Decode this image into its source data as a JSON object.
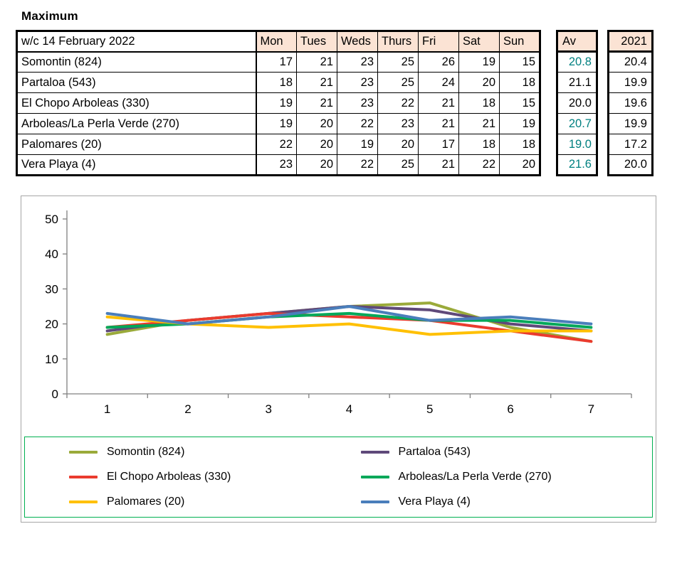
{
  "title": "Maximum",
  "table": {
    "week_label": "w/c 14 February 2022",
    "days": [
      "Mon",
      "Tues",
      "Weds",
      "Thurs",
      "Fri",
      "Sat",
      "Sun"
    ],
    "av_header": "Av",
    "prev_header": "2021",
    "rows": [
      {
        "name": "Somontin (824)",
        "values": [
          17,
          21,
          23,
          25,
          26,
          19,
          15
        ],
        "av": "20.8",
        "av_color": "#008080",
        "prev": "20.4"
      },
      {
        "name": "Partaloa (543)",
        "values": [
          18,
          21,
          23,
          25,
          24,
          20,
          18
        ],
        "av": "21.1",
        "av_color": "#000000",
        "prev": "19.9"
      },
      {
        "name": "El Chopo  Arboleas (330)",
        "values": [
          19,
          21,
          23,
          22,
          21,
          18,
          15
        ],
        "av": "20.0",
        "av_color": "#000000",
        "prev": "19.6"
      },
      {
        "name": "Arboleas/La Perla Verde (270)",
        "values": [
          19,
          20,
          22,
          23,
          21,
          21,
          19
        ],
        "av": "20.7",
        "av_color": "#008080",
        "prev": "19.9"
      },
      {
        "name": "Palomares (20)",
        "values": [
          22,
          20,
          19,
          20,
          17,
          18,
          18
        ],
        "av": "19.0",
        "av_color": "#008080",
        "prev": "17.2"
      },
      {
        "name": "Vera Playa (4)",
        "values": [
          23,
          20,
          22,
          25,
          21,
          22,
          20
        ],
        "av": "21.6",
        "av_color": "#008080",
        "prev": "20.0"
      }
    ]
  },
  "chart_data": {
    "type": "line",
    "title": "",
    "x": [
      1,
      2,
      3,
      4,
      5,
      6,
      7
    ],
    "series": [
      {
        "name": "Somontin (824)",
        "color": "#9aaa3a",
        "values": [
          17,
          21,
          23,
          25,
          26,
          19,
          15
        ]
      },
      {
        "name": "Partaloa (543)",
        "color": "#5f497a",
        "values": [
          18,
          21,
          23,
          25,
          24,
          20,
          18
        ]
      },
      {
        "name": "El Chopo  Arboleas (330)",
        "color": "#ea3b2e",
        "values": [
          19,
          21,
          23,
          22,
          21,
          18,
          15
        ]
      },
      {
        "name": "Arboleas/La Perla Verde (270)",
        "color": "#00a859",
        "values": [
          19,
          20,
          22,
          23,
          21,
          21,
          19
        ]
      },
      {
        "name": "Palomares (20)",
        "color": "#ffc000",
        "values": [
          22,
          20,
          19,
          20,
          17,
          18,
          18
        ]
      },
      {
        "name": "Vera Playa (4)",
        "color": "#4a7ebb",
        "values": [
          23,
          20,
          22,
          25,
          21,
          22,
          20
        ]
      }
    ],
    "xlabel": "",
    "ylabel": "",
    "ylim": [
      0,
      50
    ],
    "yticks": [
      0,
      10,
      20,
      30,
      40,
      50
    ],
    "grid": false,
    "legend_position": "bottom",
    "axis_color": "#808080",
    "legend_border_color": "#00b050"
  }
}
